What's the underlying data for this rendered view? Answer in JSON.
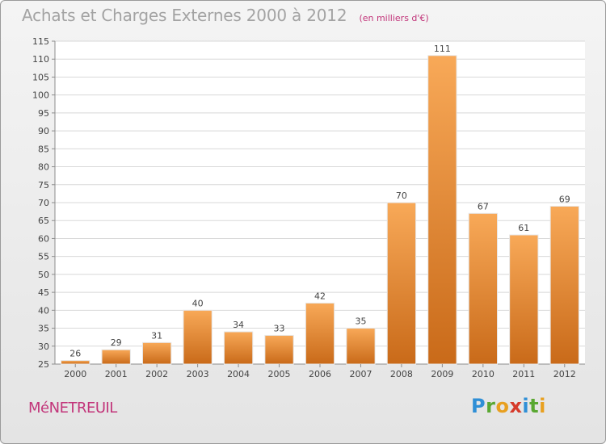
{
  "header": {
    "title": "Achats et Charges Externes 2000 à 2012",
    "subtitle": "(en milliers d'€)"
  },
  "footer": {
    "commune": "MéNETREUIL",
    "logo_letters": [
      {
        "char": "P",
        "color": "#2f8fd6"
      },
      {
        "char": "r",
        "color": "#5aa832"
      },
      {
        "char": "o",
        "color": "#e8a020"
      },
      {
        "char": "x",
        "color": "#d63a2a"
      },
      {
        "char": "i",
        "color": "#2f8fd6"
      },
      {
        "char": "t",
        "color": "#5aa832"
      },
      {
        "char": "i",
        "color": "#e8a020"
      }
    ]
  },
  "colors": {
    "bar_light": "#f8a958",
    "bar_dark": "#c96a19",
    "grid": "#d8d8d8",
    "axis": "#8c8c8c"
  },
  "chart_data": {
    "type": "bar",
    "title": "Achats et Charges Externes 2000 à 2012",
    "subtitle": "(en milliers d'€)",
    "categories": [
      "2000",
      "2001",
      "2002",
      "2003",
      "2004",
      "2005",
      "2006",
      "2007",
      "2008",
      "2009",
      "2010",
      "2011",
      "2012"
    ],
    "values": [
      26,
      29,
      31,
      40,
      34,
      33,
      42,
      35,
      70,
      111,
      67,
      61,
      69
    ],
    "ylim": [
      25,
      115
    ],
    "yticks": [
      25,
      30,
      35,
      40,
      45,
      50,
      55,
      60,
      65,
      70,
      75,
      80,
      85,
      90,
      95,
      100,
      105,
      110,
      115
    ],
    "grid": true,
    "legend": "none",
    "xlabel": "",
    "ylabel": ""
  }
}
